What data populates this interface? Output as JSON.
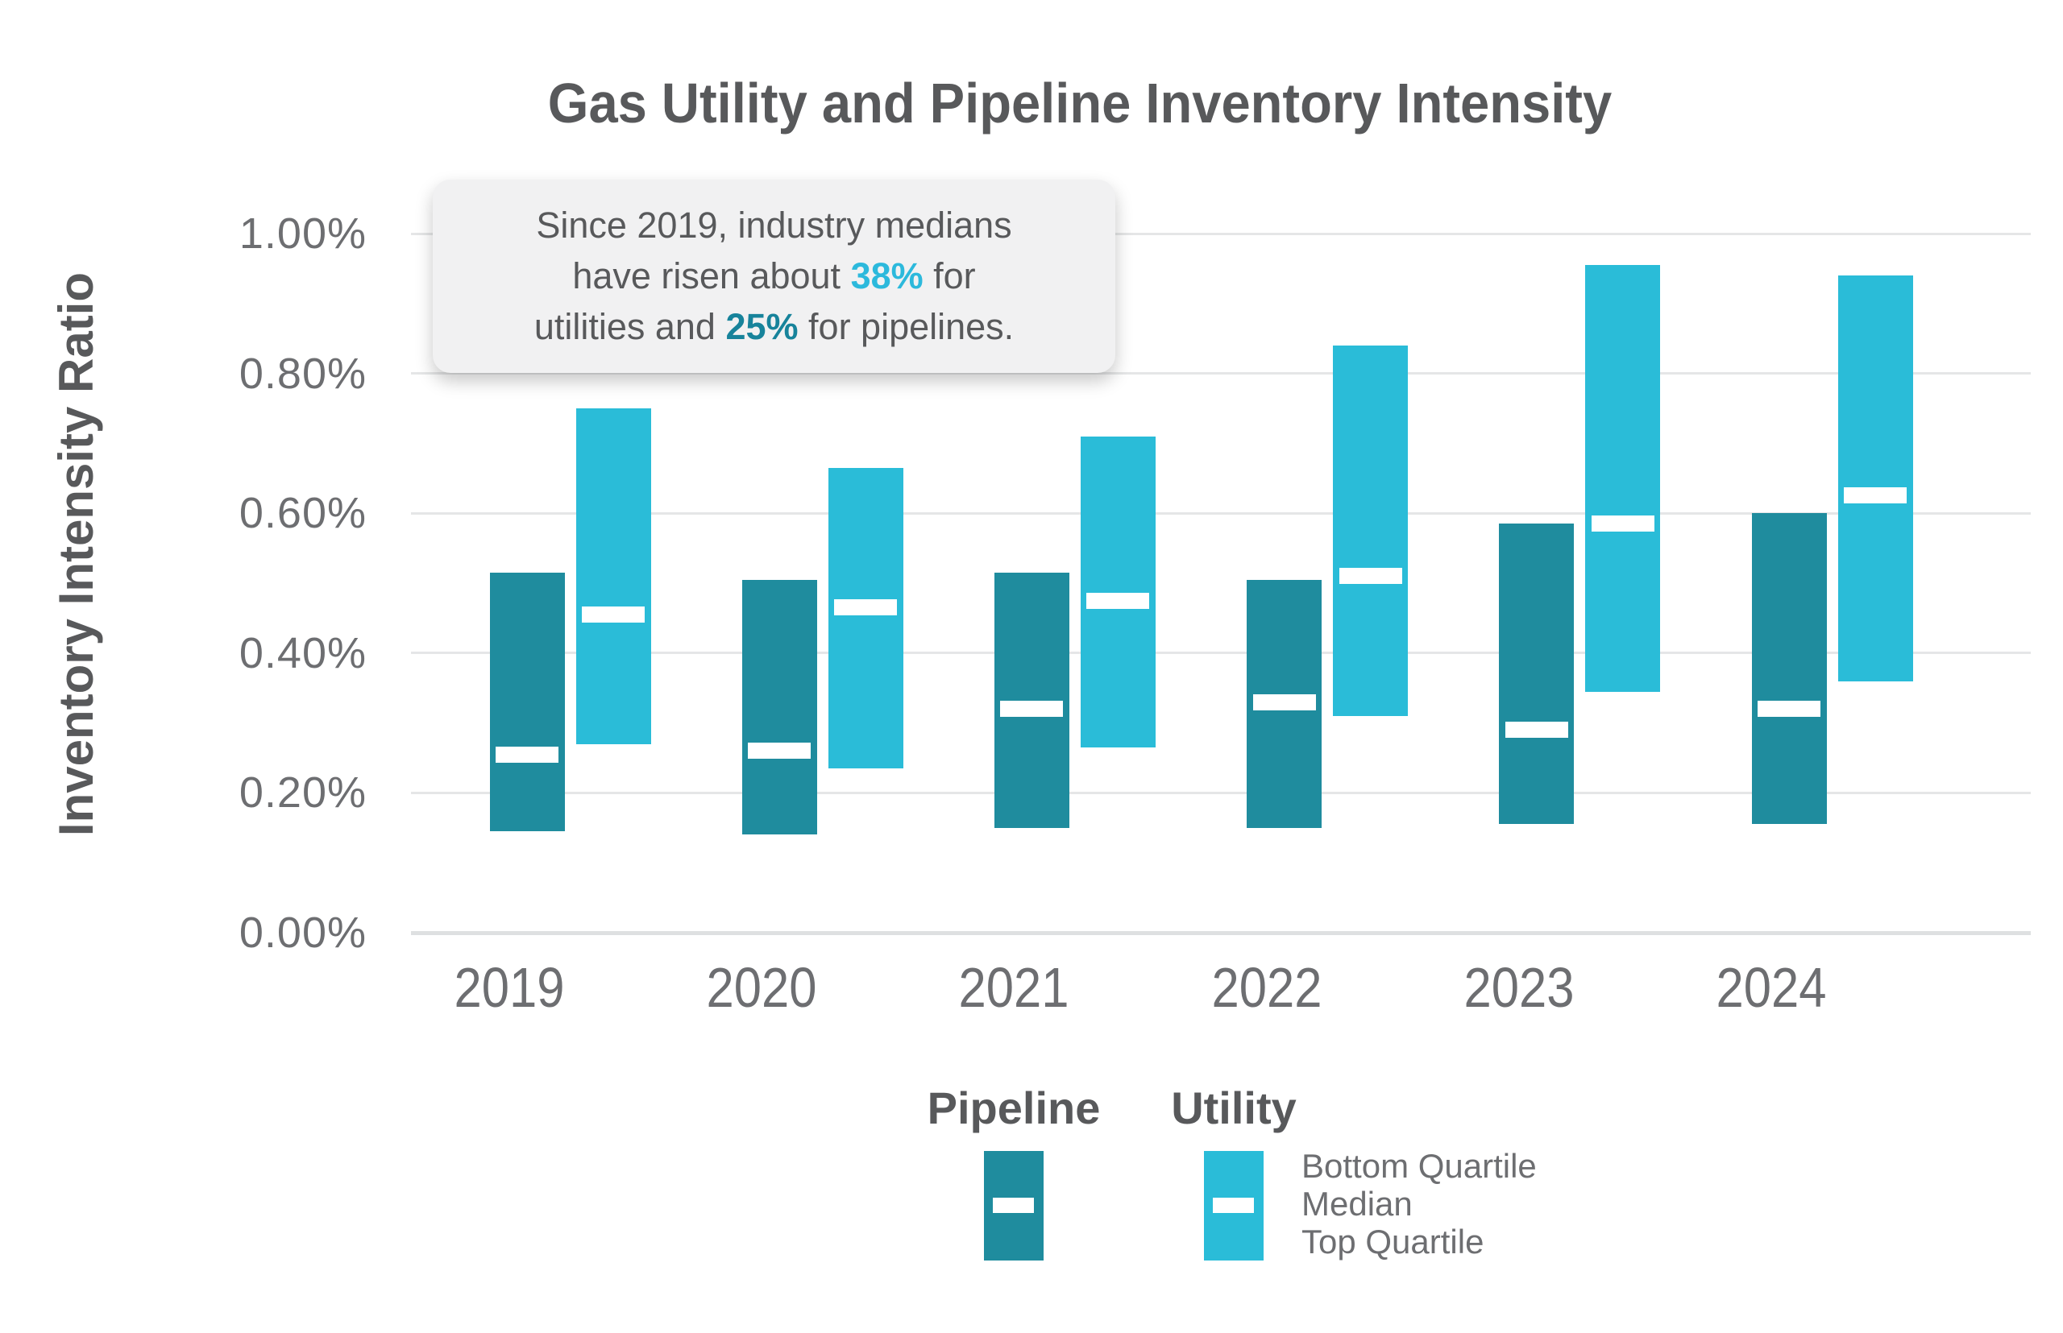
{
  "title": "Gas Utility and Pipeline Inventory Intensity",
  "y_axis": {
    "label": "Inventory Intensity Ratio",
    "ticks": [
      "1.00%",
      "0.80%",
      "0.60%",
      "0.40%",
      "0.20%",
      "0.00%"
    ]
  },
  "annotation": {
    "line1": "Since 2019, industry medians",
    "line2_pre": "have risen about ",
    "line2_utility_pct": "38%",
    "line2_post": " for",
    "line3_pre": "utilities and ",
    "line3_pipeline_pct": "25%",
    "line3_post": " for pipelines."
  },
  "legend": {
    "pipeline_label": "Pipeline",
    "utility_label": "Utility",
    "quartile_labels": [
      "Bottom Quartile",
      "Median",
      "Top Quartile"
    ]
  },
  "colors": {
    "pipeline": "#1F8C9E",
    "utility": "#2ABCD8",
    "text_dark": "#58595B",
    "text_gray": "#6D6E71",
    "gridline": "#E5E6E7",
    "annotation_bg": "#F1F1F2",
    "accent_utility": "#2CB9DC",
    "accent_pipeline": "#17839B"
  },
  "chart_data": {
    "type": "floating-bar-quartile-range",
    "title": "Gas Utility and Pipeline Inventory Intensity",
    "ylabel": "Inventory Intensity Ratio",
    "categories": [
      "2019",
      "2020",
      "2021",
      "2022",
      "2023",
      "2024"
    ],
    "unit": "percent",
    "ylim": [
      0,
      1.0
    ],
    "ytick_step": 0.2,
    "grid": true,
    "legend_position": "bottom",
    "series": [
      {
        "name": "Pipeline",
        "bottom_quartile": [
          0.145,
          0.14,
          0.15,
          0.15,
          0.155,
          0.155
        ],
        "median": [
          0.255,
          0.26,
          0.32,
          0.33,
          0.29,
          0.32
        ],
        "top_quartile": [
          0.515,
          0.505,
          0.515,
          0.505,
          0.585,
          0.6
        ]
      },
      {
        "name": "Utility",
        "bottom_quartile": [
          0.27,
          0.235,
          0.265,
          0.31,
          0.345,
          0.36
        ],
        "median": [
          0.455,
          0.465,
          0.475,
          0.51,
          0.585,
          0.625
        ],
        "top_quartile": [
          0.75,
          0.665,
          0.71,
          0.84,
          0.955,
          0.94
        ]
      }
    ]
  }
}
